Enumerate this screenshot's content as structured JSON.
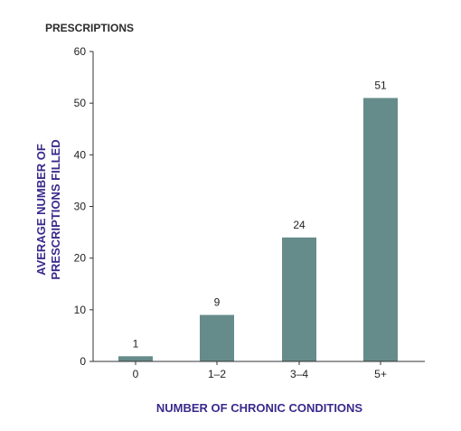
{
  "chart_data": {
    "type": "bar",
    "title": "PRESCRIPTIONS",
    "categories": [
      "0",
      "1–2",
      "3–4",
      "5+"
    ],
    "values": [
      1,
      9,
      24,
      51
    ],
    "data_labels": [
      "1",
      "9",
      "24",
      "51"
    ],
    "xlabel": "NUMBER OF CHRONIC CONDITIONS",
    "ylabel_lines": [
      "AVERAGE NUMBER OF",
      "PRESCRIPTIONS FILLED"
    ],
    "ylim": [
      0,
      60
    ],
    "yticks": [
      0,
      10,
      20,
      30,
      40,
      50,
      60
    ],
    "grid": false,
    "legend": "none"
  },
  "colors": {
    "bar": "#668b8b",
    "axis_label": "#3a2a8c",
    "axis_line": "#333333"
  }
}
